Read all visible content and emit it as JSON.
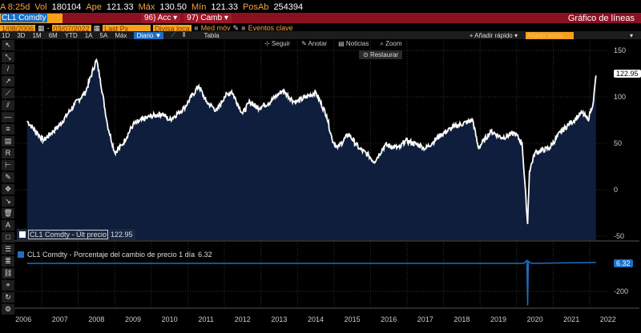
{
  "quote": {
    "time": "A 8:25d",
    "vol_label": "Vol",
    "vol": "180104",
    "open_label": "Ape",
    "open": "121.33",
    "high_label": "Máx",
    "high": "130.50",
    "low_label": "Mín",
    "low": "121.33",
    "oi_label": "PosAb",
    "oi": "254394"
  },
  "toolbar": {
    "ticker": "CL1 Comdty",
    "acc": "96) Acc ▾",
    "camb": "97) Camb ▾",
    "title": "Gráfico de líneas"
  },
  "params": {
    "start": "1/08/2006",
    "end": "03/07/2022",
    "field": "Last Px",
    "currency": "Divisa loca",
    "moving_avg": "Med móv",
    "events": "Eventos clave"
  },
  "range": {
    "buttons": [
      "1D",
      "3D",
      "1M",
      "6M",
      "YTD",
      "1A",
      "5A",
      "Máx"
    ],
    "period": "Diario ▼",
    "table": "Tabla",
    "quick_add": "+ Añadir rápido ▾",
    "add_data": "Añadir datos"
  },
  "controls": {
    "follow": "Seguir",
    "annotate": "Anotar",
    "news": "Noticias",
    "zoom": "Zoom",
    "restore": "Restaurar"
  },
  "legend": {
    "price": "CL1 Comdty - Últ precio",
    "price_value": "122.95",
    "change": "CL1 Comdty - Porcentaje del cambio de precio 1 día",
    "change_value": "6.32"
  },
  "chart_data": [
    {
      "type": "area",
      "title": "CL1 Comdty - Últ precio",
      "ylim": [
        -55,
        160
      ],
      "yticks": [
        150,
        100,
        50,
        0,
        -50
      ],
      "last": "122.95",
      "x": [
        2006.6,
        2006.9,
        2007.05,
        2007.5,
        2007.9,
        2008.2,
        2008.5,
        2008.6,
        2008.8,
        2009.0,
        2009.2,
        2009.5,
        2009.9,
        2010.3,
        2010.5,
        2010.9,
        2011.3,
        2011.5,
        2011.8,
        2012.0,
        2012.2,
        2012.5,
        2012.7,
        2012.9,
        2013.2,
        2013.6,
        2013.9,
        2014.0,
        2014.5,
        2014.8,
        2014.95,
        2015.1,
        2015.4,
        2015.7,
        2015.95,
        2016.1,
        2016.4,
        2016.8,
        2016.95,
        2017.4,
        2017.5,
        2017.95,
        2018.3,
        2018.8,
        2018.95,
        2019.3,
        2019.6,
        2019.95,
        2020.15,
        2020.3,
        2020.35,
        2020.5,
        2020.9,
        2021.2,
        2021.5,
        2021.8,
        2021.95,
        2022.1,
        2022.17
      ],
      "y": [
        74,
        60,
        53,
        70,
        92,
        105,
        140,
        120,
        70,
        40,
        48,
        70,
        78,
        82,
        75,
        88,
        112,
        95,
        85,
        100,
        106,
        82,
        95,
        88,
        93,
        107,
        95,
        95,
        105,
        80,
        54,
        45,
        60,
        44,
        37,
        30,
        48,
        45,
        53,
        47,
        44,
        60,
        68,
        75,
        45,
        63,
        56,
        61,
        50,
        -37,
        20,
        40,
        45,
        62,
        73,
        83,
        75,
        95,
        122.95
      ]
    },
    {
      "type": "line",
      "title": "CL1 Comdty - Porcentaje del cambio de precio 1 día",
      "ylim": [
        -260,
        40
      ],
      "yticks": [
        -200
      ],
      "last": "6.32",
      "x": [
        2006.6,
        2020.2,
        2020.28,
        2020.3,
        2020.32,
        2020.4,
        2022.17
      ],
      "y": [
        0,
        0,
        20,
        -300,
        15,
        0,
        6.32
      ]
    }
  ],
  "xaxis": [
    "2006",
    "2007",
    "2008",
    "2009",
    "2010",
    "2011",
    "2012",
    "2013",
    "2014",
    "2015",
    "2016",
    "2017",
    "2018",
    "2019",
    "2020",
    "2021",
    "2022"
  ],
  "colors": {
    "line": "#ffffff",
    "fill": "#0e1e3c",
    "change": "#1d6fc4",
    "header": "#8b1020",
    "accent": "#f7a11a"
  }
}
